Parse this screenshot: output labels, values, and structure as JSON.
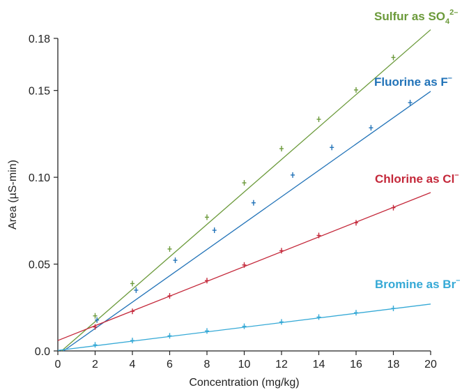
{
  "chart_data": {
    "type": "scatter",
    "title": "",
    "xlabel": "Concentration (mg/kg)",
    "ylabel": "Area (µS-min)",
    "xlim": [
      0,
      20
    ],
    "ylim": [
      0,
      0.18
    ],
    "x_ticks": [
      "0",
      "2",
      "4",
      "6",
      "8",
      "10",
      "12",
      "14",
      "16",
      "18",
      "20"
    ],
    "y_ticks": [
      "0.0",
      "0.05",
      "0.10",
      "0.15",
      "0.18"
    ],
    "grid": false,
    "series": [
      {
        "name": "Sulfur as SO",
        "name_sub": "4",
        "name_sup": "2–",
        "color": "#6b9a3a",
        "fit": {
          "x0": 0.2,
          "y0": 0.0,
          "x1": 20,
          "y1": 0.185
        },
        "points": [
          [
            2.0,
            0.0202
          ],
          [
            4.0,
            0.0388
          ],
          [
            6.0,
            0.0587
          ],
          [
            8.0,
            0.077
          ],
          [
            10.0,
            0.0968
          ],
          [
            12.0,
            0.1165
          ],
          [
            14.0,
            0.1334
          ],
          [
            16.0,
            0.1503
          ],
          [
            18.0,
            0.169
          ]
        ]
      },
      {
        "name": "Fluorine as F",
        "name_sup": "–",
        "color": "#2273b8",
        "fit": {
          "x0": 0.3,
          "y0": 0.0,
          "x1": 20,
          "y1": 0.1495
        },
        "points": [
          [
            2.1,
            0.0178
          ],
          [
            4.2,
            0.035
          ],
          [
            6.3,
            0.0522
          ],
          [
            8.4,
            0.0695
          ],
          [
            10.5,
            0.0853
          ],
          [
            12.6,
            0.1013
          ],
          [
            14.7,
            0.1172
          ],
          [
            16.8,
            0.1285
          ],
          [
            18.9,
            0.143
          ]
        ]
      },
      {
        "name": "Chlorine as Cl",
        "name_sup": "–",
        "color": "#c4283a",
        "fit": {
          "x0": 0,
          "y0": 0.006,
          "x1": 20,
          "y1": 0.0912
        },
        "points": [
          [
            2.0,
            0.0138
          ],
          [
            4.0,
            0.0228
          ],
          [
            6.0,
            0.0317
          ],
          [
            8.0,
            0.0405
          ],
          [
            10.0,
            0.0495
          ],
          [
            12.0,
            0.0577
          ],
          [
            14.0,
            0.0665
          ],
          [
            16.0,
            0.0738
          ],
          [
            18.0,
            0.0825
          ]
        ]
      },
      {
        "name": "Bromine as Br",
        "name_sup": "–",
        "color": "#35a9d6",
        "fit": {
          "x0": 0,
          "y0": 0.0003,
          "x1": 20,
          "y1": 0.027
        },
        "points": [
          [
            2.0,
            0.0035
          ],
          [
            4.0,
            0.006
          ],
          [
            6.0,
            0.0087
          ],
          [
            8.0,
            0.0115
          ],
          [
            10.0,
            0.0142
          ],
          [
            12.0,
            0.0167
          ],
          [
            14.0,
            0.0195
          ],
          [
            16.0,
            0.022
          ],
          [
            18.0,
            0.0245
          ]
        ]
      }
    ]
  }
}
